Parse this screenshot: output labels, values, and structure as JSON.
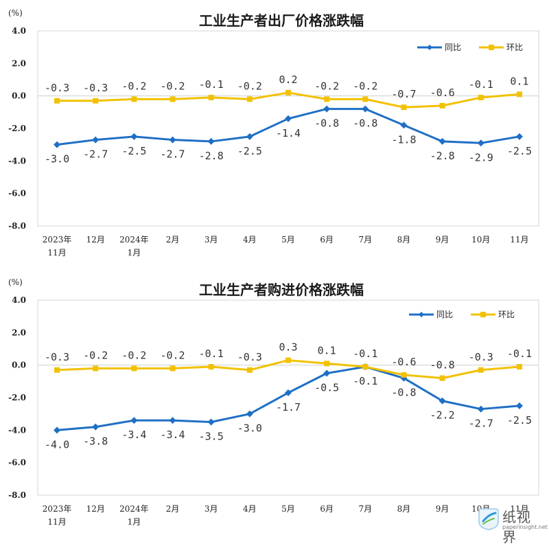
{
  "chart_data": [
    {
      "type": "line",
      "title": "工业生产者出厂价格涨跌幅",
      "unit": "(%)",
      "categories": [
        [
          "2023年",
          "11月"
        ],
        [
          "12月"
        ],
        [
          "2024年",
          "1月"
        ],
        [
          "2月"
        ],
        [
          "3月"
        ],
        [
          "4月"
        ],
        [
          "5月"
        ],
        [
          "6月"
        ],
        [
          "7月"
        ],
        [
          "8月"
        ],
        [
          "9月"
        ],
        [
          "10月"
        ],
        [
          "11月"
        ]
      ],
      "ylim": [
        -8.0,
        4.0
      ],
      "yticks": [
        "4.0",
        "2.0",
        "0.0",
        "-2.0",
        "-4.0",
        "-6.0",
        "-8.0"
      ],
      "legend_position": "top-right",
      "grid": false,
      "series": [
        {
          "name": "同比",
          "color": "#1f6fc5",
          "values": [
            -3.0,
            -2.7,
            -2.5,
            -2.7,
            -2.8,
            -2.5,
            -1.4,
            -0.8,
            -0.8,
            -1.8,
            -2.8,
            -2.9,
            -2.5
          ],
          "labels": [
            "-3.0",
            "-2.7",
            "-2.5",
            "-2.7",
            "-2.8",
            "-2.5",
            "-1.4",
            "-0.8",
            "-0.8",
            "-1.8",
            "-2.8",
            "-2.9",
            "-2.5"
          ]
        },
        {
          "name": "环比",
          "color": "#f2c100",
          "values": [
            -0.3,
            -0.3,
            -0.2,
            -0.2,
            -0.1,
            -0.2,
            0.2,
            -0.2,
            -0.2,
            -0.7,
            -0.6,
            -0.1,
            0.1
          ],
          "labels": [
            "-0.3",
            "-0.3",
            "-0.2",
            "-0.2",
            "-0.1",
            "-0.2",
            "0.2",
            "-0.2",
            "-0.2",
            "-0.7",
            "-0.6",
            "-0.1",
            "0.1"
          ]
        }
      ]
    },
    {
      "type": "line",
      "title": "工业生产者购进价格涨跌幅",
      "unit": "(%)",
      "categories": [
        [
          "2023年",
          "11月"
        ],
        [
          "12月"
        ],
        [
          "2024年",
          "1月"
        ],
        [
          "2月"
        ],
        [
          "3月"
        ],
        [
          "4月"
        ],
        [
          "5月"
        ],
        [
          "6月"
        ],
        [
          "7月"
        ],
        [
          "8月"
        ],
        [
          "9月"
        ],
        [
          "10月"
        ],
        [
          "11月"
        ]
      ],
      "ylim": [
        -8.0,
        4.0
      ],
      "yticks": [
        "4.0",
        "2.0",
        "0.0",
        "-2.0",
        "-4.0",
        "-6.0",
        "-8.0"
      ],
      "legend_position": "top-right",
      "grid": false,
      "series": [
        {
          "name": "同比",
          "color": "#1f6fc5",
          "values": [
            -4.0,
            -3.8,
            -3.4,
            -3.4,
            -3.5,
            -3.0,
            -1.7,
            -0.5,
            -0.1,
            -0.8,
            -2.2,
            -2.7,
            -2.5
          ],
          "labels": [
            "-4.0",
            "-3.8",
            "-3.4",
            "-3.4",
            "-3.5",
            "-3.0",
            "-1.7",
            "-0.5",
            "-0.1",
            "-0.8",
            "-2.2",
            "-2.7",
            "-2.5"
          ]
        },
        {
          "name": "环比",
          "color": "#f2c100",
          "values": [
            -0.3,
            -0.2,
            -0.2,
            -0.2,
            -0.1,
            -0.3,
            0.3,
            0.1,
            -0.1,
            -0.6,
            -0.8,
            -0.3,
            -0.1
          ],
          "labels": [
            "-0.3",
            "-0.2",
            "-0.2",
            "-0.2",
            "-0.1",
            "-0.3",
            "0.3",
            "0.1",
            "-0.1",
            "-0.6",
            "-0.8",
            "-0.3",
            "-0.1"
          ]
        }
      ]
    }
  ],
  "watermark": {
    "text": "纸视界",
    "subtext": "paperinsight.net"
  }
}
